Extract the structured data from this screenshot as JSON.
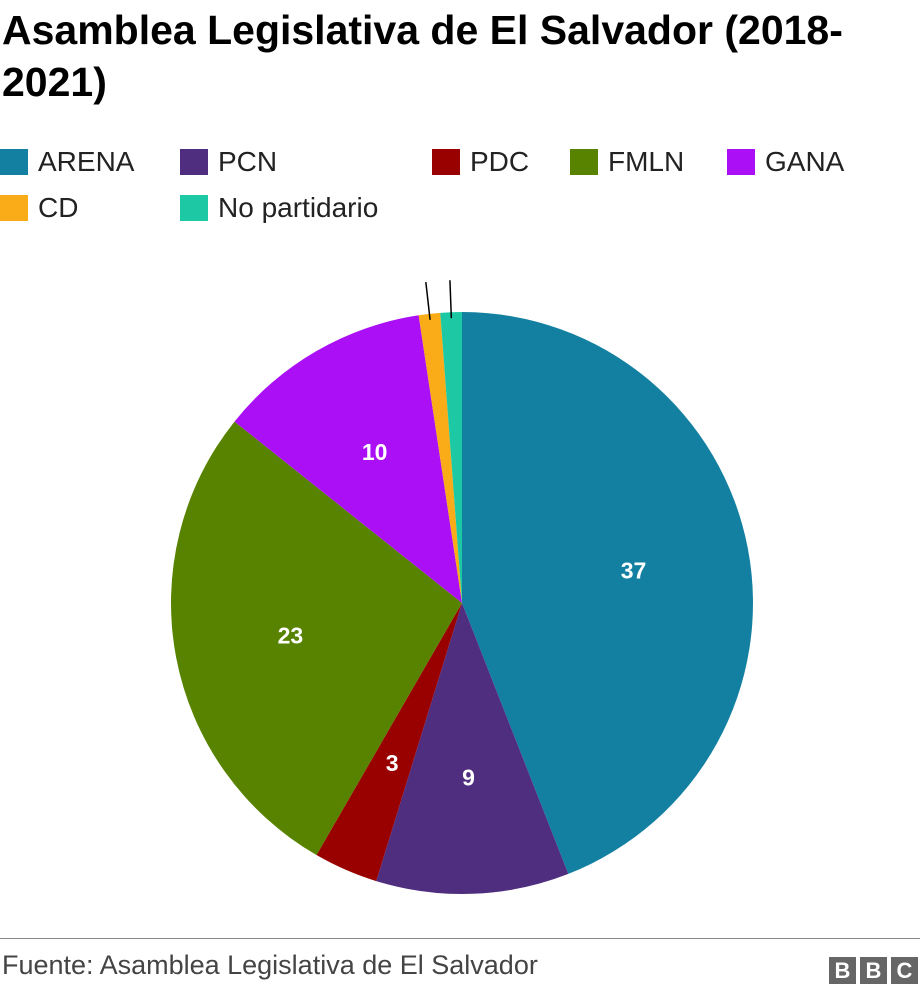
{
  "title": "Asamblea Legislativa de El Salvador (2018-2021)",
  "source": "Fuente: Asamblea Legislativa de El Salvador",
  "logo": [
    "B",
    "B",
    "C"
  ],
  "chart_data": {
    "type": "pie",
    "title": "Asamblea Legislativa de El Salvador (2018-2021)",
    "categories": [
      "ARENA",
      "PCN",
      "PDC",
      "FMLN",
      "GANA",
      "CD",
      "No partidario"
    ],
    "values": [
      37,
      9,
      3,
      23,
      10,
      1,
      1
    ],
    "colors": [
      "#1380A1",
      "#4F2D7F",
      "#990000",
      "#588300",
      "#AA0FF5",
      "#FAAB18",
      "#1DC9A4"
    ],
    "show_labels": [
      true,
      true,
      true,
      true,
      true,
      false,
      false
    ],
    "legend_position": "top-left"
  }
}
